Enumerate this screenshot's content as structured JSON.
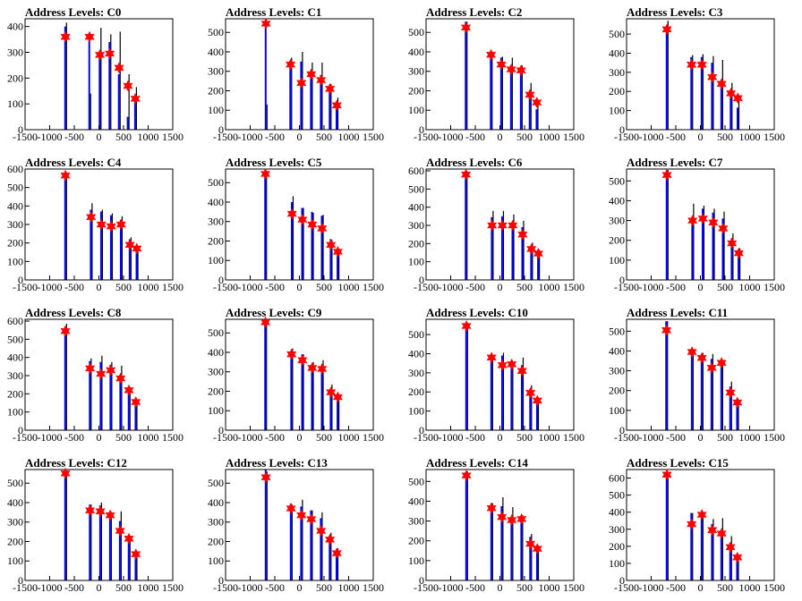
{
  "figure": {
    "title_prefix": "Address Levels: ",
    "colors": {
      "histogram_black": "#000000",
      "histogram_blue": "#0000ff",
      "marker_red": "#ff0000",
      "frame": "#000000"
    }
  },
  "chart_data": [
    {
      "type": "bar",
      "title": "Address Levels: C0",
      "xlabel": "",
      "ylabel": "",
      "xlim": [
        -1500,
        1500
      ],
      "ylim": [
        0,
        430
      ],
      "xticks": [
        "-1500",
        "-1000",
        "-500",
        "0",
        "500",
        "1000",
        "1500"
      ],
      "yticks": [
        "0",
        "100",
        "200",
        "300",
        "400"
      ],
      "peaks": {
        "x": [
          -680,
          -190,
          20,
          220,
          410,
          590,
          740
        ],
        "black": [
          415,
          140,
          395,
          370,
          380,
          215,
          165
        ],
        "blue": [
          400,
          360,
          280,
          340,
          215,
          50,
          110
        ]
      },
      "markers": {
        "x": [
          -680,
          -190,
          20,
          220,
          410,
          590,
          740
        ],
        "y": [
          360,
          360,
          290,
          295,
          240,
          170,
          120
        ]
      }
    },
    {
      "type": "bar",
      "title": "Address Levels: C1",
      "xlabel": "",
      "ylabel": "",
      "xlim": [
        -1500,
        1500
      ],
      "ylim": [
        0,
        570
      ],
      "xticks": [
        "-1500",
        "-1000",
        "-500",
        "0",
        "500",
        "1000",
        "1500"
      ],
      "yticks": [
        "0",
        "100",
        "200",
        "300",
        "400",
        "500"
      ],
      "peaks": {
        "x": [
          -680,
          -180,
          40,
          240,
          440,
          620,
          760
        ],
        "black": [
          130,
          370,
          400,
          345,
          345,
          235,
          165
        ],
        "blue": [
          540,
          330,
          350,
          280,
          280,
          200,
          105
        ]
      },
      "markers": {
        "x": [
          -680,
          -180,
          40,
          240,
          440,
          620,
          760
        ],
        "y": [
          545,
          335,
          240,
          285,
          255,
          210,
          125
        ]
      }
    },
    {
      "type": "bar",
      "title": "Address Levels: C2",
      "xlabel": "",
      "ylabel": "",
      "xlim": [
        -1500,
        1500
      ],
      "ylim": [
        0,
        570
      ],
      "xticks": [
        "-1500",
        "-1000",
        "-500",
        "0",
        "500",
        "1000",
        "1500"
      ],
      "yticks": [
        "0",
        "100",
        "200",
        "300",
        "400",
        "500"
      ],
      "peaks": {
        "x": [
          -690,
          -180,
          30,
          230,
          430,
          610,
          750
        ],
        "black": [
          555,
          400,
          375,
          370,
          330,
          240,
          140
        ],
        "blue": [
          555,
          390,
          370,
          330,
          300,
          200,
          105
        ]
      },
      "markers": {
        "x": [
          -690,
          -180,
          30,
          230,
          430,
          610,
          750
        ],
        "y": [
          525,
          385,
          335,
          310,
          305,
          180,
          140
        ]
      }
    },
    {
      "type": "bar",
      "title": "Address Levels: C3",
      "xlabel": "",
      "ylabel": "",
      "xlim": [
        -1500,
        1500
      ],
      "ylim": [
        0,
        580
      ],
      "xticks": [
        "-1500",
        "-1000",
        "-500",
        "0",
        "500",
        "1000",
        "1500"
      ],
      "yticks": [
        "0",
        "100",
        "200",
        "300",
        "400",
        "500"
      ],
      "peaks": {
        "x": [
          -680,
          -180,
          30,
          240,
          430,
          620,
          760
        ],
        "black": [
          570,
          390,
          395,
          385,
          365,
          245,
          160
        ],
        "blue": [
          540,
          380,
          380,
          350,
          240,
          190,
          115
        ]
      },
      "markers": {
        "x": [
          -680,
          -180,
          30,
          240,
          430,
          620,
          760
        ],
        "y": [
          525,
          340,
          340,
          275,
          240,
          190,
          165
        ]
      }
    },
    {
      "type": "bar",
      "title": "Address Levels: C4",
      "xlabel": "",
      "ylabel": "",
      "xlim": [
        -1500,
        1500
      ],
      "ylim": [
        0,
        600
      ],
      "xticks": [
        "-1500",
        "-1000",
        "-500",
        "0",
        "500",
        "1000",
        "1500"
      ],
      "yticks": [
        "0",
        "100",
        "200",
        "300",
        "400",
        "500",
        "600"
      ],
      "peaks": {
        "x": [
          -680,
          -160,
          50,
          250,
          450,
          630,
          770
        ],
        "black": [
          560,
          415,
          380,
          360,
          345,
          230,
          165
        ],
        "blue": [
          580,
          380,
          370,
          350,
          325,
          220,
          160
        ]
      },
      "markers": {
        "x": [
          -680,
          -160,
          50,
          250,
          450,
          630,
          770
        ],
        "y": [
          565,
          340,
          300,
          290,
          300,
          190,
          170
        ]
      }
    },
    {
      "type": "bar",
      "title": "Address Levels: C5",
      "xlabel": "",
      "ylabel": "",
      "xlim": [
        -1500,
        1500
      ],
      "ylim": [
        0,
        570
      ],
      "xticks": [
        "-1500",
        "-1000",
        "-500",
        "0",
        "500",
        "1000",
        "1500"
      ],
      "yticks": [
        "0",
        "100",
        "200",
        "300",
        "400",
        "500"
      ],
      "peaks": {
        "x": [
          -690,
          -150,
          60,
          260,
          460,
          640,
          780
        ],
        "black": [
          560,
          430,
          370,
          345,
          335,
          205,
          150
        ],
        "blue": [
          540,
          400,
          370,
          350,
          330,
          210,
          140
        ]
      },
      "markers": {
        "x": [
          -690,
          -150,
          60,
          260,
          460,
          640,
          780
        ],
        "y": [
          545,
          340,
          310,
          285,
          265,
          180,
          145
        ]
      }
    },
    {
      "type": "bar",
      "title": "Address Levels: C6",
      "xlabel": "",
      "ylabel": "",
      "xlim": [
        -1500,
        1500
      ],
      "ylim": [
        0,
        610
      ],
      "xticks": [
        "-1500",
        "-1000",
        "-500",
        "0",
        "500",
        "1000",
        "1500"
      ],
      "yticks": [
        "0",
        "100",
        "200",
        "300",
        "400",
        "500",
        "600"
      ],
      "peaks": {
        "x": [
          -690,
          -160,
          50,
          260,
          460,
          640,
          780
        ],
        "black": [
          580,
          380,
          380,
          360,
          325,
          205,
          165
        ],
        "blue": [
          560,
          345,
          350,
          320,
          290,
          185,
          150
        ]
      },
      "markers": {
        "x": [
          -690,
          -160,
          50,
          260,
          460,
          640,
          780
        ],
        "y": [
          580,
          300,
          300,
          300,
          250,
          170,
          145
        ]
      }
    },
    {
      "type": "bar",
      "title": "Address Levels: C7",
      "xlabel": "",
      "ylabel": "",
      "xlim": [
        -1500,
        1500
      ],
      "ylim": [
        0,
        560
      ],
      "xticks": [
        "-1500",
        "-1000",
        "-500",
        "0",
        "500",
        "1000",
        "1500"
      ],
      "yticks": [
        "0",
        "100",
        "200",
        "300",
        "400",
        "500"
      ],
      "peaks": {
        "x": [
          -680,
          -160,
          50,
          260,
          460,
          640,
          780
        ],
        "black": [
          555,
          385,
          375,
          360,
          345,
          235,
          160
        ],
        "blue": [
          555,
          300,
          360,
          340,
          310,
          210,
          145
        ]
      },
      "markers": {
        "x": [
          -680,
          -160,
          50,
          260,
          460,
          640,
          780
        ],
        "y": [
          530,
          300,
          310,
          290,
          260,
          185,
          135
        ]
      }
    },
    {
      "type": "bar",
      "title": "Address Levels: C8",
      "xlabel": "",
      "ylabel": "",
      "xlim": [
        -1500,
        1500
      ],
      "ylim": [
        0,
        610
      ],
      "xticks": [
        "-1500",
        "-1000",
        "-500",
        "0",
        "500",
        "1000",
        "1500"
      ],
      "yticks": [
        "0",
        "100",
        "200",
        "300",
        "400",
        "500",
        "600"
      ],
      "peaks": {
        "x": [
          -680,
          -180,
          40,
          240,
          440,
          610,
          750
        ],
        "black": [
          585,
          395,
          410,
          375,
          355,
          220,
          165
        ],
        "blue": [
          570,
          380,
          375,
          360,
          300,
          210,
          150
        ]
      },
      "markers": {
        "x": [
          -680,
          -180,
          40,
          240,
          440,
          610,
          750
        ],
        "y": [
          545,
          340,
          310,
          330,
          285,
          220,
          155
        ]
      }
    },
    {
      "type": "bar",
      "title": "Address Levels: C9",
      "xlabel": "",
      "ylabel": "",
      "xlim": [
        -1500,
        1500
      ],
      "ylim": [
        0,
        570
      ],
      "xticks": [
        "-1500",
        "-1000",
        "-500",
        "0",
        "500",
        "1000",
        "1500"
      ],
      "yticks": [
        "0",
        "100",
        "200",
        "300",
        "400",
        "500"
      ],
      "peaks": {
        "x": [
          -690,
          -160,
          60,
          260,
          460,
          640,
          780
        ],
        "black": [
          560,
          420,
          390,
          350,
          360,
          235,
          175
        ],
        "blue": [
          560,
          410,
          390,
          330,
          330,
          200,
          160
        ]
      },
      "markers": {
        "x": [
          -690,
          -160,
          60,
          260,
          460,
          640,
          780
        ],
        "y": [
          555,
          390,
          360,
          320,
          315,
          195,
          170
        ]
      }
    },
    {
      "type": "bar",
      "title": "Address Levels: C10",
      "xlabel": "",
      "ylabel": "",
      "xlim": [
        -1500,
        1500
      ],
      "ylim": [
        0,
        580
      ],
      "xticks": [
        "-1500",
        "-1000",
        "-500",
        "0",
        "500",
        "1000",
        "1500"
      ],
      "yticks": [
        "0",
        "100",
        "200",
        "300",
        "400",
        "500"
      ],
      "peaks": {
        "x": [
          -680,
          -170,
          50,
          240,
          450,
          620,
          760
        ],
        "black": [
          560,
          385,
          405,
          355,
          380,
          235,
          160
        ],
        "blue": [
          560,
          380,
          390,
          340,
          340,
          210,
          150
        ]
      },
      "markers": {
        "x": [
          -680,
          -170,
          50,
          240,
          450,
          620,
          760
        ],
        "y": [
          545,
          380,
          340,
          345,
          310,
          195,
          155
        ]
      }
    },
    {
      "type": "bar",
      "title": "Address Levels: C11",
      "xlabel": "",
      "ylabel": "",
      "xlim": [
        -1500,
        1500
      ],
      "ylim": [
        0,
        560
      ],
      "xticks": [
        "-1500",
        "-1000",
        "-500",
        "0",
        "500",
        "1000",
        "1500"
      ],
      "yticks": [
        "0",
        "100",
        "200",
        "300",
        "400",
        "500"
      ],
      "peaks": {
        "x": [
          -690,
          -170,
          30,
          230,
          430,
          610,
          750
        ],
        "black": [
          550,
          390,
          390,
          385,
          350,
          245,
          155
        ],
        "blue": [
          550,
          390,
          370,
          360,
          340,
          220,
          135
        ]
      },
      "markers": {
        "x": [
          -690,
          -170,
          30,
          230,
          430,
          610,
          750
        ],
        "y": [
          505,
          395,
          365,
          315,
          340,
          190,
          140
        ]
      }
    },
    {
      "type": "bar",
      "title": "Address Levels: C12",
      "xlabel": "",
      "ylabel": "",
      "xlim": [
        -1500,
        1500
      ],
      "ylim": [
        0,
        570
      ],
      "xticks": [
        "-1500",
        "-1000",
        "-500",
        "0",
        "500",
        "1000",
        "1500"
      ],
      "yticks": [
        "0",
        "100",
        "200",
        "300",
        "400",
        "500"
      ],
      "peaks": {
        "x": [
          -680,
          -180,
          30,
          230,
          430,
          610,
          750
        ],
        "black": [
          560,
          390,
          400,
          350,
          355,
          230,
          150
        ],
        "blue": [
          560,
          390,
          385,
          330,
          305,
          210,
          130
        ]
      },
      "markers": {
        "x": [
          -680,
          -180,
          30,
          230,
          430,
          610,
          750
        ],
        "y": [
          550,
          360,
          355,
          335,
          255,
          215,
          135
        ]
      }
    },
    {
      "type": "bar",
      "title": "Address Levels: C13",
      "xlabel": "",
      "ylabel": "",
      "xlim": [
        -1500,
        1500
      ],
      "ylim": [
        0,
        570
      ],
      "xticks": [
        "-1500",
        "-1000",
        "-500",
        "0",
        "500",
        "1000",
        "1500"
      ],
      "yticks": [
        "0",
        "100",
        "200",
        "300",
        "400",
        "500"
      ],
      "peaks": {
        "x": [
          -680,
          -170,
          40,
          240,
          440,
          620,
          760
        ],
        "black": [
          560,
          390,
          415,
          360,
          350,
          245,
          165
        ],
        "blue": [
          570,
          395,
          380,
          360,
          320,
          230,
          150
        ]
      },
      "markers": {
        "x": [
          -680,
          -170,
          40,
          240,
          440,
          620,
          760
        ],
        "y": [
          530,
          370,
          335,
          315,
          255,
          210,
          140
        ]
      }
    },
    {
      "type": "bar",
      "title": "Address Levels: C14",
      "xlabel": "",
      "ylabel": "",
      "xlim": [
        -1500,
        1500
      ],
      "ylim": [
        0,
        560
      ],
      "xticks": [
        "-1500",
        "-1000",
        "-500",
        "0",
        "500",
        "1000",
        "1500"
      ],
      "yticks": [
        "0",
        "100",
        "200",
        "300",
        "400",
        "500"
      ],
      "peaks": {
        "x": [
          -680,
          -170,
          40,
          240,
          440,
          620,
          760
        ],
        "black": [
          550,
          390,
          420,
          370,
          330,
          235,
          160
        ],
        "blue": [
          550,
          390,
          375,
          300,
          320,
          220,
          150
        ]
      },
      "markers": {
        "x": [
          -680,
          -170,
          40,
          240,
          440,
          620,
          760
        ],
        "y": [
          530,
          365,
          320,
          305,
          310,
          185,
          160
        ]
      }
    },
    {
      "type": "bar",
      "title": "Address Levels: C15",
      "xlabel": "",
      "ylabel": "",
      "xlim": [
        -1500,
        1500
      ],
      "ylim": [
        0,
        650
      ],
      "xticks": [
        "-1500",
        "-1000",
        "-500",
        "0",
        "500",
        "1000",
        "1500"
      ],
      "yticks": [
        "0",
        "100",
        "200",
        "300",
        "400",
        "500",
        "600"
      ],
      "peaks": {
        "x": [
          -680,
          -180,
          30,
          240,
          430,
          610,
          750
        ],
        "black": [
          600,
          395,
          385,
          360,
          365,
          260,
          145
        ],
        "blue": [
          600,
          395,
          385,
          330,
          290,
          220,
          130
        ]
      },
      "markers": {
        "x": [
          -680,
          -180,
          30,
          240,
          430,
          610,
          750
        ],
        "y": [
          620,
          330,
          385,
          295,
          275,
          195,
          135
        ]
      }
    }
  ]
}
